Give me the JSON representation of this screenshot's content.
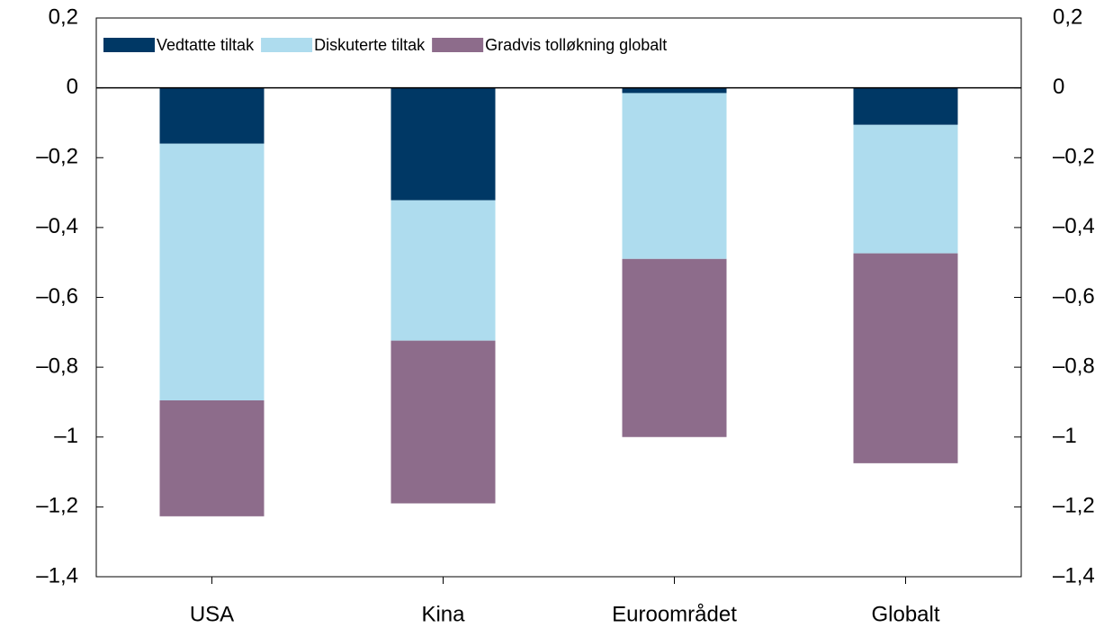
{
  "chart_data": {
    "type": "stacked-bar",
    "categories": [
      "USA",
      "Kina",
      "Euroområdet",
      "Globalt"
    ],
    "series": [
      {
        "name": "Vedtatte tiltak",
        "color": "#003865",
        "values": [
          -0.16,
          -0.322,
          -0.015,
          -0.106
        ]
      },
      {
        "name": "Diskuterte tiltak",
        "color": "#aedcee",
        "values": [
          -0.735,
          -0.402,
          -0.475,
          -0.368
        ]
      },
      {
        "name": "Gradvis tolløkning globalt",
        "color": "#8d6c8b",
        "values": [
          -0.332,
          -0.466,
          -0.51,
          -0.601
        ]
      }
    ],
    "ylim": [
      -1.4,
      0.2
    ],
    "yticks": [
      {
        "value": 0.2,
        "label": "0,2"
      },
      0,
      {
        "value": -0.2,
        "label": "–0,2"
      },
      {
        "value": -0.4,
        "label": "–0,4"
      },
      {
        "value": -0.6,
        "label": "–0,6"
      },
      {
        "value": -0.8,
        "label": "–0,8"
      },
      {
        "value": -1,
        "label": "–1"
      },
      {
        "value": -1.2,
        "label": "–1,2"
      },
      {
        "value": -1.4,
        "label": "–1,4"
      }
    ],
    "y2lim": [
      -1.4,
      0.2
    ],
    "y2ticks": [
      {
        "value": 0.2,
        "label": "0,2"
      },
      0,
      {
        "value": -0.2,
        "label": "–0,2"
      },
      {
        "value": -0.4,
        "label": "–0,4"
      },
      {
        "value": -0.6,
        "label": "–0,6"
      },
      {
        "value": -0.8,
        "label": "–0,8"
      },
      {
        "value": -1,
        "label": "–1"
      },
      {
        "value": -1.2,
        "label": "–1,2"
      },
      {
        "value": -1.4,
        "label": "–1,4"
      }
    ],
    "legend": "top-left"
  }
}
